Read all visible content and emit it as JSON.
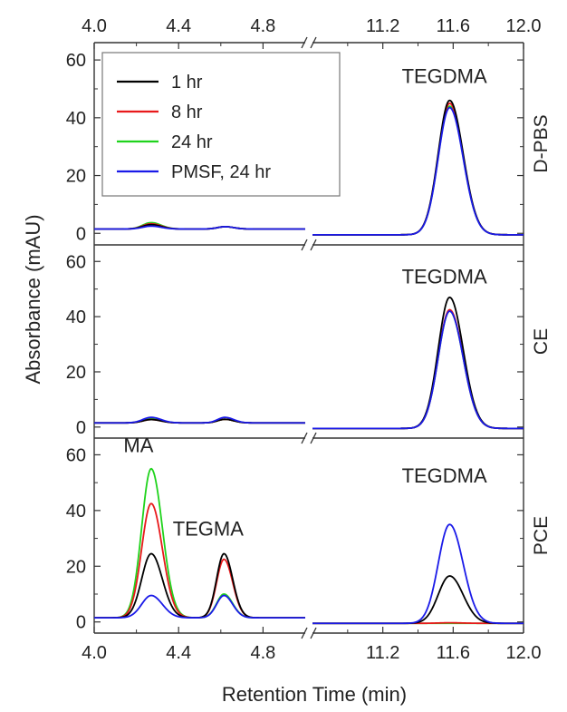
{
  "chart_data": {
    "type": "line",
    "xlabel": "Retention Time (min)",
    "ylabel": "Absorbance (mAU)",
    "axis_break": {
      "between": [
        5.0,
        10.8
      ]
    },
    "x_left": {
      "range": [
        4.0,
        5.0
      ],
      "ticks": [
        4.0,
        4.4,
        4.8
      ],
      "tick_labels": [
        "4.0",
        "4.4",
        "4.8"
      ]
    },
    "x_right": {
      "range": [
        10.8,
        12.0
      ],
      "ticks": [
        11.2,
        11.6,
        12.0
      ],
      "tick_labels": [
        "11.2",
        "11.6",
        "12.0"
      ]
    },
    "y": {
      "range": [
        -4,
        66
      ],
      "ticks": [
        0,
        20,
        40,
        60
      ],
      "tick_labels": [
        "0",
        "20",
        "40",
        "60"
      ]
    },
    "colors": {
      "1 hr": "#000000",
      "8 hr": "#e8191b",
      "24 hr": "#1fd31c",
      "PMSF, 24 hr": "#1a1ae8"
    },
    "legend": {
      "placement": "top-left of top panel",
      "entries": [
        "1 hr",
        "8 hr",
        "24 hr",
        "PMSF, 24 hr"
      ]
    },
    "panels": [
      {
        "label": "D-PBS",
        "annotations": [
          {
            "text": "TEGDMA",
            "x": 11.55,
            "y": 52
          }
        ],
        "series": [
          {
            "name": "1 hr",
            "baseline": 1.5,
            "right_baseline": -0.5,
            "peaks": [
              {
                "x": 4.27,
                "h": 1.5,
                "w": 0.04
              },
              {
                "x": 4.62,
                "h": 0.8,
                "w": 0.035
              },
              {
                "x": 11.58,
                "h": 46.5,
                "w": 0.065
              }
            ]
          },
          {
            "name": "8 hr",
            "baseline": 1.5,
            "right_baseline": -0.5,
            "peaks": [
              {
                "x": 4.27,
                "h": 1.8,
                "w": 0.04
              },
              {
                "x": 4.62,
                "h": 0.8,
                "w": 0.035
              },
              {
                "x": 11.58,
                "h": 45.5,
                "w": 0.065
              }
            ]
          },
          {
            "name": "24 hr",
            "baseline": 1.5,
            "right_baseline": -0.5,
            "peaks": [
              {
                "x": 4.27,
                "h": 2.2,
                "w": 0.04
              },
              {
                "x": 4.62,
                "h": 0.8,
                "w": 0.035
              },
              {
                "x": 11.58,
                "h": 44.5,
                "w": 0.065
              }
            ]
          },
          {
            "name": "PMSF, 24 hr",
            "baseline": 1.5,
            "right_baseline": -0.5,
            "peaks": [
              {
                "x": 4.27,
                "h": 1.0,
                "w": 0.04
              },
              {
                "x": 4.62,
                "h": 0.8,
                "w": 0.035
              },
              {
                "x": 11.58,
                "h": 44.0,
                "w": 0.065
              }
            ]
          }
        ]
      },
      {
        "label": "CE",
        "annotations": [
          {
            "text": "TEGDMA",
            "x": 11.55,
            "y": 52
          }
        ],
        "series": [
          {
            "name": "1 hr",
            "baseline": 1.5,
            "right_baseline": -0.5,
            "peaks": [
              {
                "x": 4.27,
                "h": 1.2,
                "w": 0.04
              },
              {
                "x": 4.62,
                "h": 1.3,
                "w": 0.035
              },
              {
                "x": 11.58,
                "h": 47.5,
                "w": 0.065
              }
            ]
          },
          {
            "name": "8 hr",
            "baseline": 1.5,
            "right_baseline": -0.5,
            "peaks": [
              {
                "x": 4.27,
                "h": 1.2,
                "w": 0.04
              },
              {
                "x": 4.62,
                "h": 1.3,
                "w": 0.035
              },
              {
                "x": 11.58,
                "h": 43.0,
                "w": 0.065
              }
            ]
          },
          {
            "name": "24 hr",
            "baseline": 1.5,
            "right_baseline": -0.5,
            "peaks": [
              {
                "x": 4.27,
                "h": 1.5,
                "w": 0.04
              },
              {
                "x": 4.62,
                "h": 1.3,
                "w": 0.035
              },
              {
                "x": 11.58,
                "h": 42.5,
                "w": 0.065
              }
            ]
          },
          {
            "name": "PMSF, 24 hr",
            "baseline": 1.5,
            "right_baseline": -0.5,
            "peaks": [
              {
                "x": 4.27,
                "h": 2.0,
                "w": 0.04
              },
              {
                "x": 4.62,
                "h": 2.0,
                "w": 0.035
              },
              {
                "x": 11.58,
                "h": 42.5,
                "w": 0.065
              }
            ]
          }
        ]
      },
      {
        "label": "PCE",
        "annotations": [
          {
            "text": "MA",
            "x": 4.21,
            "y": 61
          },
          {
            "text": "TEGMA",
            "x": 4.54,
            "y": 31
          },
          {
            "text": "TEGDMA",
            "x": 11.55,
            "y": 50
          }
        ],
        "series": [
          {
            "name": "1 hr",
            "baseline": 1.5,
            "right_baseline": -0.5,
            "peaks": [
              {
                "x": 4.27,
                "h": 23.0,
                "w": 0.045
              },
              {
                "x": 4.615,
                "h": 23.0,
                "w": 0.035
              },
              {
                "x": 11.58,
                "h": 17.0,
                "w": 0.065
              }
            ]
          },
          {
            "name": "8 hr",
            "baseline": 1.5,
            "right_baseline": -0.5,
            "peaks": [
              {
                "x": 4.27,
                "h": 41.0,
                "w": 0.045
              },
              {
                "x": 4.615,
                "h": 21.0,
                "w": 0.035
              },
              {
                "x": 11.58,
                "h": 0.2,
                "w": 0.065
              }
            ]
          },
          {
            "name": "24 hr",
            "baseline": 1.5,
            "right_baseline": -0.5,
            "peaks": [
              {
                "x": 4.27,
                "h": 53.5,
                "w": 0.045
              },
              {
                "x": 4.615,
                "h": 8.5,
                "w": 0.035
              },
              {
                "x": 11.58,
                "h": 0.0,
                "w": 0.065
              }
            ]
          },
          {
            "name": "PMSF, 24 hr",
            "baseline": 1.5,
            "right_baseline": -0.5,
            "peaks": [
              {
                "x": 4.27,
                "h": 8.0,
                "w": 0.045
              },
              {
                "x": 4.615,
                "h": 8.0,
                "w": 0.035
              },
              {
                "x": 11.58,
                "h": 35.5,
                "w": 0.065
              }
            ]
          }
        ]
      }
    ]
  }
}
